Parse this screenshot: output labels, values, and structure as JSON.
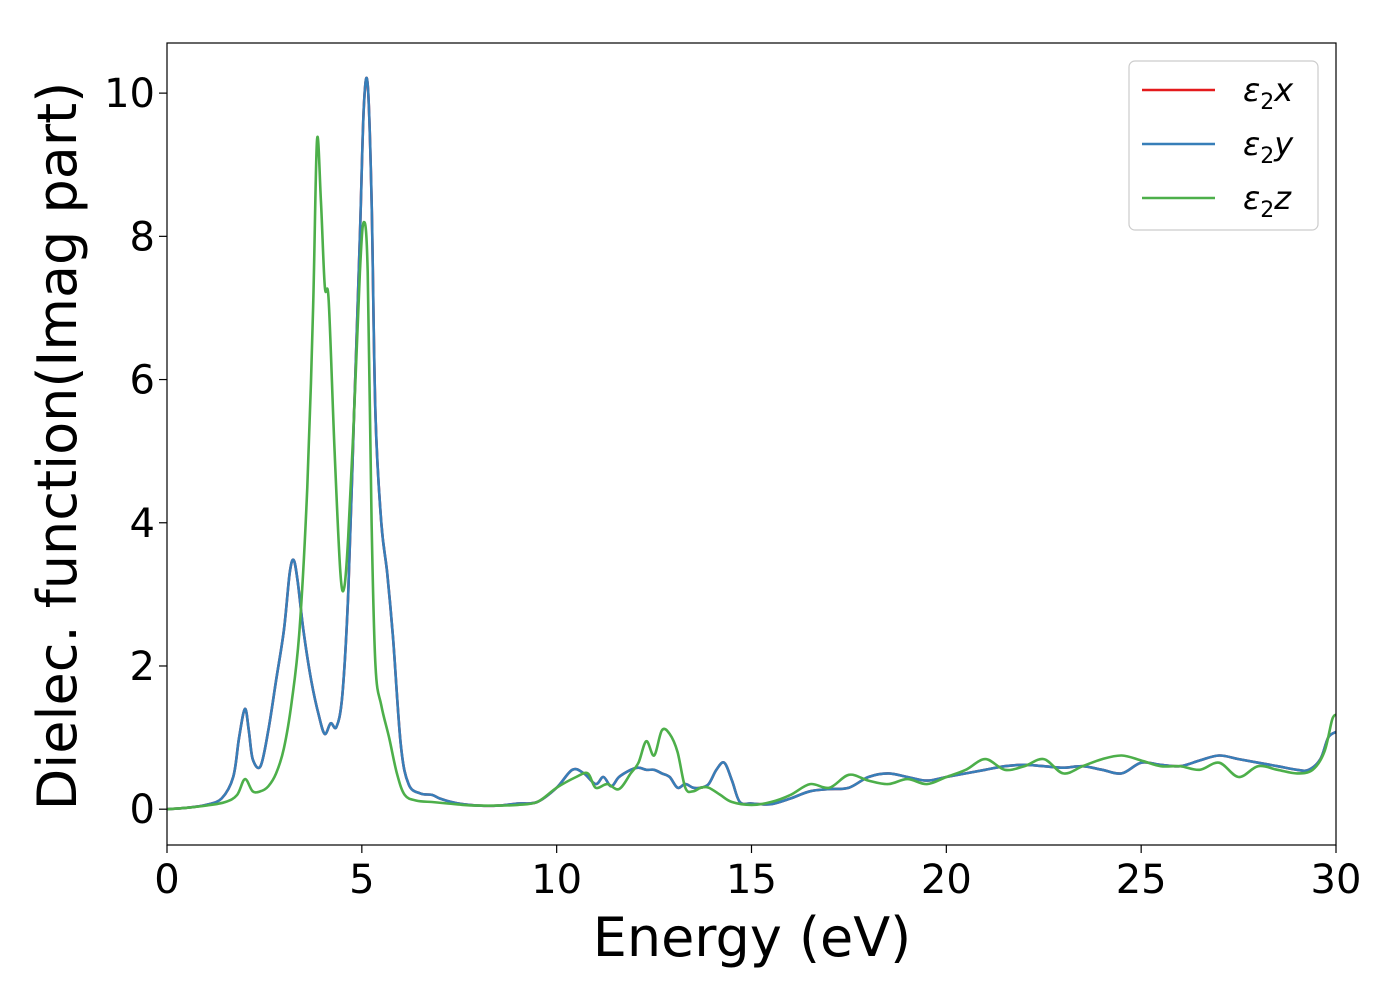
{
  "chart_data": {
    "type": "line",
    "xlabel": "Energy (eV)",
    "ylabel": "Dielec. function(Imag part)",
    "xlim": [
      0,
      30
    ],
    "ylim": [
      -0.5,
      10.7
    ],
    "xticks": [
      0,
      5,
      10,
      15,
      20,
      25,
      30
    ],
    "yticks": [
      0,
      2,
      4,
      6,
      8,
      10
    ],
    "xtick_labels": [
      "0",
      "5",
      "10",
      "15",
      "20",
      "25",
      "30"
    ],
    "ytick_labels": [
      "0",
      "2",
      "4",
      "6",
      "8",
      "10"
    ],
    "grid": false,
    "legend_position": "top-right",
    "series": [
      {
        "name": "ε2x",
        "legend_main": "ε",
        "legend_sub": "2",
        "legend_var": "x",
        "color": "#e41a1c",
        "x": [
          0,
          0.5,
          1.0,
          1.4,
          1.7,
          1.85,
          2.0,
          2.1,
          2.2,
          2.4,
          2.6,
          2.8,
          3.0,
          3.15,
          3.25,
          3.35,
          3.5,
          3.7,
          3.9,
          4.05,
          4.2,
          4.35,
          4.5,
          4.65,
          4.8,
          4.95,
          5.05,
          5.15,
          5.25,
          5.35,
          5.5,
          5.65,
          5.8,
          6.0,
          6.2,
          6.5,
          6.8,
          7.0,
          7.3,
          7.6,
          8.0,
          8.5,
          9.0,
          9.5,
          10.0,
          10.4,
          10.7,
          11.0,
          11.2,
          11.4,
          11.6,
          11.9,
          12.1,
          12.3,
          12.5,
          12.7,
          12.9,
          13.1,
          13.3,
          13.5,
          13.7,
          13.9,
          14.1,
          14.3,
          14.5,
          14.7,
          15.0,
          15.5,
          16.0,
          16.5,
          17.0,
          17.5,
          18.0,
          18.5,
          19.0,
          19.5,
          20.0,
          20.5,
          21.0,
          21.5,
          22.0,
          22.5,
          23.0,
          23.5,
          24.0,
          24.5,
          25.0,
          25.5,
          26.0,
          26.5,
          27.0,
          27.5,
          28.0,
          28.5,
          29.0,
          29.3,
          29.6,
          29.8,
          30.0
        ],
        "y": [
          0,
          0.02,
          0.06,
          0.15,
          0.45,
          1.0,
          1.4,
          1.1,
          0.7,
          0.6,
          1.1,
          1.8,
          2.5,
          3.3,
          3.48,
          3.2,
          2.5,
          1.8,
          1.3,
          1.05,
          1.2,
          1.15,
          1.6,
          3.0,
          5.5,
          8.0,
          9.8,
          10.12,
          8.5,
          5.5,
          4.0,
          3.3,
          2.4,
          0.9,
          0.35,
          0.22,
          0.2,
          0.15,
          0.1,
          0.07,
          0.05,
          0.05,
          0.08,
          0.1,
          0.3,
          0.55,
          0.5,
          0.35,
          0.45,
          0.32,
          0.45,
          0.55,
          0.58,
          0.55,
          0.55,
          0.5,
          0.45,
          0.3,
          0.35,
          0.3,
          0.3,
          0.35,
          0.55,
          0.65,
          0.4,
          0.1,
          0.08,
          0.07,
          0.15,
          0.25,
          0.28,
          0.3,
          0.45,
          0.5,
          0.45,
          0.4,
          0.45,
          0.5,
          0.55,
          0.6,
          0.62,
          0.6,
          0.58,
          0.6,
          0.55,
          0.5,
          0.65,
          0.62,
          0.6,
          0.68,
          0.75,
          0.7,
          0.65,
          0.6,
          0.55,
          0.55,
          0.7,
          1.0,
          1.08
        ]
      },
      {
        "name": "ε2y",
        "legend_main": "ε",
        "legend_sub": "2",
        "legend_var": "y",
        "color": "#377eb8",
        "x": [
          0,
          0.5,
          1.0,
          1.4,
          1.7,
          1.85,
          2.0,
          2.1,
          2.2,
          2.4,
          2.6,
          2.8,
          3.0,
          3.15,
          3.25,
          3.35,
          3.5,
          3.7,
          3.9,
          4.05,
          4.2,
          4.35,
          4.5,
          4.65,
          4.8,
          4.95,
          5.05,
          5.15,
          5.25,
          5.35,
          5.5,
          5.65,
          5.8,
          6.0,
          6.2,
          6.5,
          6.8,
          7.0,
          7.3,
          7.6,
          8.0,
          8.5,
          9.0,
          9.5,
          10.0,
          10.4,
          10.7,
          11.0,
          11.2,
          11.4,
          11.6,
          11.9,
          12.1,
          12.3,
          12.5,
          12.7,
          12.9,
          13.1,
          13.3,
          13.5,
          13.7,
          13.9,
          14.1,
          14.3,
          14.5,
          14.7,
          15.0,
          15.5,
          16.0,
          16.5,
          17.0,
          17.5,
          18.0,
          18.5,
          19.0,
          19.5,
          20.0,
          20.5,
          21.0,
          21.5,
          22.0,
          22.5,
          23.0,
          23.5,
          24.0,
          24.5,
          25.0,
          25.5,
          26.0,
          26.5,
          27.0,
          27.5,
          28.0,
          28.5,
          29.0,
          29.3,
          29.6,
          29.8,
          30.0
        ],
        "y": [
          0,
          0.02,
          0.06,
          0.15,
          0.45,
          1.0,
          1.4,
          1.1,
          0.7,
          0.6,
          1.1,
          1.8,
          2.5,
          3.3,
          3.48,
          3.2,
          2.5,
          1.8,
          1.3,
          1.05,
          1.2,
          1.15,
          1.6,
          3.0,
          5.5,
          8.0,
          9.8,
          10.12,
          8.5,
          5.5,
          4.0,
          3.3,
          2.4,
          0.9,
          0.35,
          0.22,
          0.2,
          0.15,
          0.1,
          0.07,
          0.05,
          0.05,
          0.08,
          0.1,
          0.3,
          0.55,
          0.5,
          0.35,
          0.45,
          0.32,
          0.45,
          0.55,
          0.58,
          0.55,
          0.55,
          0.5,
          0.45,
          0.3,
          0.35,
          0.3,
          0.3,
          0.35,
          0.55,
          0.65,
          0.4,
          0.1,
          0.08,
          0.07,
          0.15,
          0.25,
          0.28,
          0.3,
          0.45,
          0.5,
          0.45,
          0.4,
          0.45,
          0.5,
          0.55,
          0.6,
          0.62,
          0.6,
          0.58,
          0.6,
          0.55,
          0.5,
          0.65,
          0.62,
          0.6,
          0.68,
          0.75,
          0.7,
          0.65,
          0.6,
          0.55,
          0.55,
          0.7,
          1.0,
          1.08
        ]
      },
      {
        "name": "ε2z",
        "legend_main": "ε",
        "legend_sub": "2",
        "legend_var": "z",
        "color": "#4daf4a",
        "x": [
          0,
          0.5,
          1.0,
          1.5,
          1.8,
          2.0,
          2.2,
          2.4,
          2.6,
          2.8,
          3.0,
          3.2,
          3.4,
          3.6,
          3.75,
          3.85,
          3.95,
          4.05,
          4.15,
          4.3,
          4.45,
          4.55,
          4.65,
          4.8,
          4.95,
          5.05,
          5.15,
          5.25,
          5.35,
          5.5,
          5.7,
          5.9,
          6.1,
          6.4,
          6.8,
          7.2,
          7.6,
          8.0,
          8.5,
          9.0,
          9.5,
          10.0,
          10.5,
          10.8,
          11.0,
          11.3,
          11.6,
          11.9,
          12.1,
          12.3,
          12.5,
          12.7,
          12.9,
          13.1,
          13.3,
          13.5,
          13.7,
          13.9,
          14.2,
          14.5,
          15.0,
          15.5,
          16.0,
          16.5,
          17.0,
          17.5,
          18.0,
          18.5,
          19.0,
          19.5,
          20.0,
          20.5,
          21.0,
          21.5,
          22.0,
          22.5,
          23.0,
          23.5,
          24.0,
          24.5,
          25.0,
          25.5,
          26.0,
          26.5,
          27.0,
          27.5,
          28.0,
          28.5,
          29.0,
          29.4,
          29.7,
          29.9,
          30.0
        ],
        "y": [
          0,
          0.02,
          0.05,
          0.1,
          0.2,
          0.42,
          0.25,
          0.25,
          0.32,
          0.5,
          0.85,
          1.5,
          2.5,
          4.5,
          7.0,
          9.34,
          8.5,
          7.3,
          7.1,
          5.0,
          3.3,
          3.1,
          3.8,
          5.5,
          7.5,
          8.2,
          7.5,
          4.0,
          2.0,
          1.45,
          1.0,
          0.5,
          0.2,
          0.12,
          0.1,
          0.08,
          0.06,
          0.05,
          0.05,
          0.06,
          0.1,
          0.3,
          0.45,
          0.5,
          0.3,
          0.35,
          0.28,
          0.5,
          0.65,
          0.95,
          0.75,
          1.1,
          1.05,
          0.8,
          0.3,
          0.25,
          0.3,
          0.3,
          0.2,
          0.1,
          0.06,
          0.1,
          0.2,
          0.35,
          0.3,
          0.48,
          0.4,
          0.35,
          0.42,
          0.35,
          0.45,
          0.55,
          0.7,
          0.55,
          0.6,
          0.7,
          0.5,
          0.6,
          0.7,
          0.75,
          0.68,
          0.6,
          0.6,
          0.55,
          0.65,
          0.45,
          0.6,
          0.55,
          0.5,
          0.55,
          0.8,
          1.25,
          1.32
        ]
      }
    ]
  }
}
